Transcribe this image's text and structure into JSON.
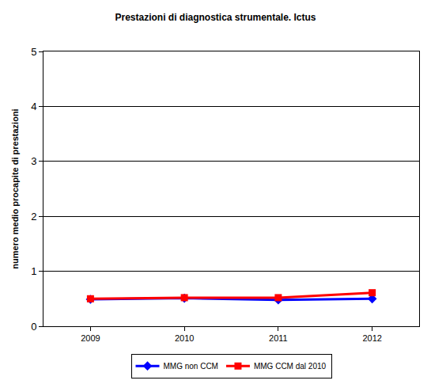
{
  "chart_data": {
    "type": "line",
    "title": "Prestazioni di diagnostica strumentale. Ictus",
    "y_label": "numero medio procapite di prestazioni",
    "categories": [
      "2009",
      "2010",
      "2011",
      "2012"
    ],
    "series": [
      {
        "name": "MMG non CCM",
        "color": "#0000ff",
        "marker": "diamond",
        "line_style": "solid",
        "values": [
          0.49,
          0.51,
          0.48,
          0.5
        ]
      },
      {
        "name": "MMG CCM dal 2010",
        "color": "#ff0000",
        "marker": "square",
        "line_style": "solid",
        "values": [
          0.5,
          0.52,
          0.52,
          0.61
        ]
      }
    ],
    "ylim": [
      0,
      5
    ],
    "yticks": [
      0,
      1,
      2,
      3,
      4,
      5
    ],
    "grid": true,
    "legend": "bottom"
  }
}
